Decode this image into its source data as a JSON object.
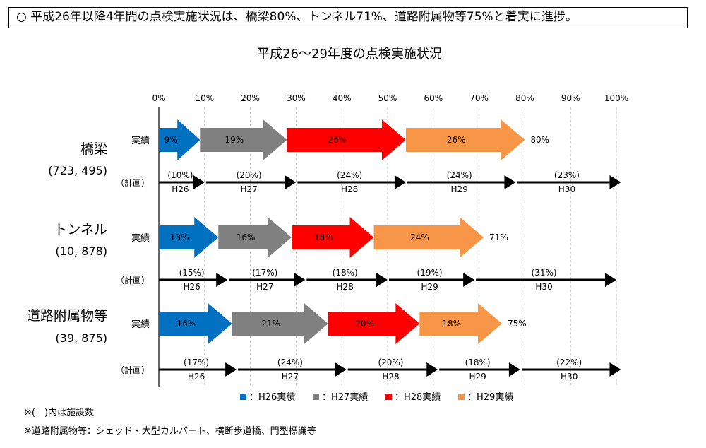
{
  "headline": "○ 平成26年以降4年間の点検実施状況は、橋梁80%、トンネル71%、道路附属物等75%と着実に進捗。",
  "notes": [
    "※(　)内は施設数",
    "※道路附属物等：シェッド・大型カルバート、横断歩道橋、門型標識等"
  ],
  "colors": {
    "H26": "#0070C0",
    "H27": "#808080",
    "H28": "#FF0000",
    "H29": "#F79646",
    "plan": "#000000",
    "grid": "#bfbfbf"
  },
  "chart_data": {
    "type": "bar",
    "orientation": "horizontal-stacked",
    "title": "平成26〜29年度の点検実施状況",
    "x_ticks": [
      "0%",
      "10%",
      "20%",
      "30%",
      "40%",
      "50%",
      "60%",
      "70%",
      "80%",
      "90%",
      "100%"
    ],
    "xlim": [
      0,
      100
    ],
    "grid": true,
    "legend_placement": "bottom",
    "legend": [
      {
        "key": "H26",
        "label": "H26実績"
      },
      {
        "key": "H27",
        "label": "H27実績"
      },
      {
        "key": "H28",
        "label": "H28実績"
      },
      {
        "key": "H29",
        "label": "H29実績"
      }
    ],
    "actual_row_label": "実績",
    "plan_row_label": "（計画）",
    "groups": [
      {
        "name": "橋梁",
        "count": "(723, 495)",
        "actual": [
          {
            "year": "H26",
            "value": 9,
            "label": "9%"
          },
          {
            "year": "H27",
            "value": 19,
            "label": "19%"
          },
          {
            "year": "H28",
            "value": 26,
            "label": "26%"
          },
          {
            "year": "H29",
            "value": 26,
            "label": "26%"
          }
        ],
        "actual_total": "80%",
        "plan": [
          {
            "year": "H26",
            "value": 10,
            "label": "(10%)"
          },
          {
            "year": "H27",
            "value": 20,
            "label": "(20%)"
          },
          {
            "year": "H28",
            "value": 24,
            "label": "(24%)"
          },
          {
            "year": "H29",
            "value": 24,
            "label": "(24%)"
          },
          {
            "year": "H30",
            "value": 23,
            "label": "(23%)"
          }
        ]
      },
      {
        "name": "トンネル",
        "count": "(10, 878)",
        "actual": [
          {
            "year": "H26",
            "value": 13,
            "label": "13%"
          },
          {
            "year": "H27",
            "value": 16,
            "label": "16%"
          },
          {
            "year": "H28",
            "value": 18,
            "label": "18%"
          },
          {
            "year": "H29",
            "value": 24,
            "label": "24%"
          }
        ],
        "actual_total": "71%",
        "plan": [
          {
            "year": "H26",
            "value": 15,
            "label": "(15%)"
          },
          {
            "year": "H27",
            "value": 17,
            "label": "(17%)"
          },
          {
            "year": "H28",
            "value": 18,
            "label": "(18%)"
          },
          {
            "year": "H29",
            "value": 19,
            "label": "(19%)"
          },
          {
            "year": "H30",
            "value": 31,
            "label": "(31%)"
          }
        ]
      },
      {
        "name": "道路附属物等",
        "count": "(39, 875)",
        "actual": [
          {
            "year": "H26",
            "value": 16,
            "label": "16%"
          },
          {
            "year": "H27",
            "value": 21,
            "label": "21%"
          },
          {
            "year": "H28",
            "value": 20,
            "label": "20%"
          },
          {
            "year": "H29",
            "value": 18,
            "label": "18%"
          }
        ],
        "actual_total": "75%",
        "plan": [
          {
            "year": "H26",
            "value": 17,
            "label": "(17%)"
          },
          {
            "year": "H27",
            "value": 24,
            "label": "(24%)"
          },
          {
            "year": "H28",
            "value": 20,
            "label": "(20%)"
          },
          {
            "year": "H29",
            "value": 18,
            "label": "(18%)"
          },
          {
            "year": "H30",
            "value": 22,
            "label": "(22%)"
          }
        ]
      }
    ]
  }
}
